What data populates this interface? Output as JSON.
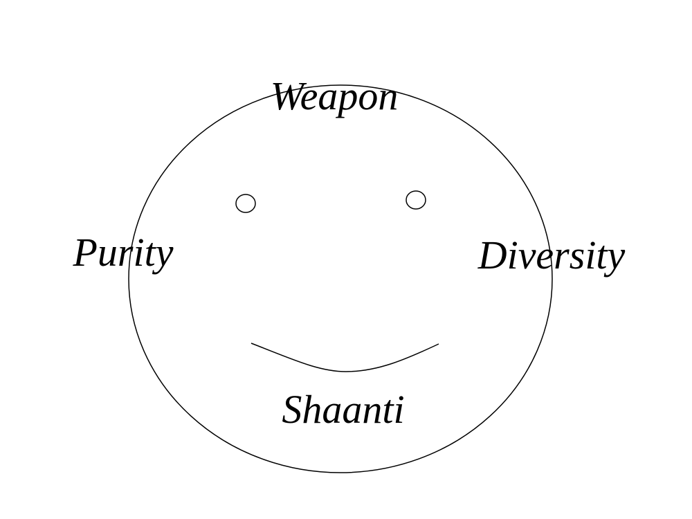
{
  "labels": {
    "top": "Weapon",
    "left": "Purity",
    "right": "Diversity",
    "bottom": "Shaanti"
  },
  "colors": {
    "stroke": "#000000",
    "background": "#ffffff"
  }
}
